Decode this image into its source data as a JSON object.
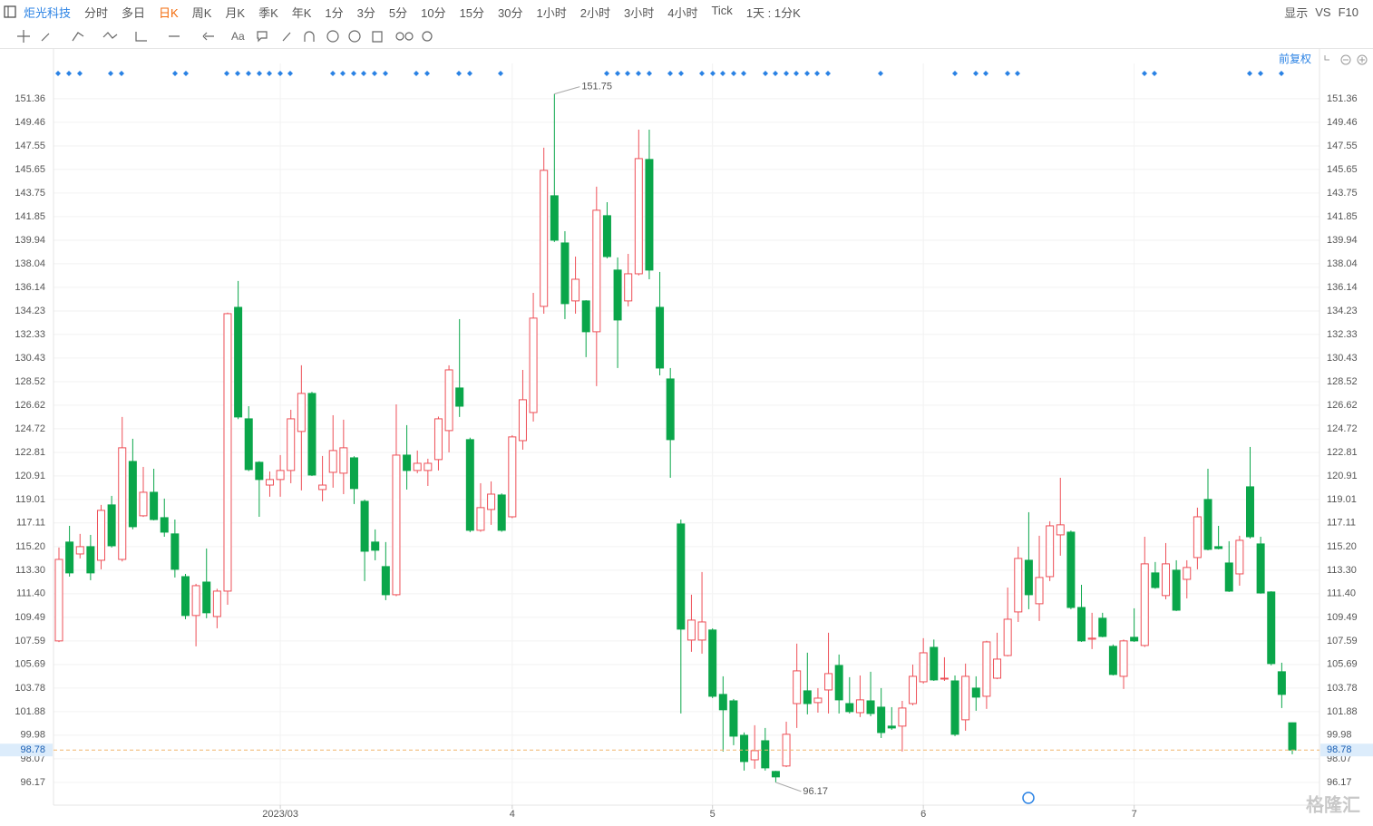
{
  "toolbar": {
    "stock": "炬光科技",
    "periods": [
      "分时",
      "多日",
      "日K",
      "周K",
      "月K",
      "季K",
      "年K",
      "1分",
      "3分",
      "5分",
      "10分",
      "15分",
      "30分",
      "1小时",
      "2小时",
      "3小时",
      "4小时",
      "Tick",
      "1天 : 1分K"
    ],
    "active_period_index": 2,
    "right": [
      "显示",
      "VS",
      "F10"
    ]
  },
  "adjust_label": "前复权",
  "watermark": "格隆汇",
  "chart_data": {
    "type": "candlestick",
    "categories": [
      null,
      null,
      null,
      null,
      null,
      null,
      null,
      null,
      null,
      null,
      null,
      null,
      null,
      null,
      null,
      null,
      null,
      null,
      null,
      null,
      null,
      "2023/03",
      null,
      null,
      null,
      null,
      null,
      null,
      null,
      null,
      null,
      null,
      null,
      null,
      null,
      null,
      null,
      null,
      null,
      null,
      null,
      null,
      null,
      "4",
      null,
      null,
      null,
      null,
      null,
      null,
      null,
      null,
      null,
      null,
      null,
      null,
      null,
      null,
      null,
      null,
      null,
      null,
      "5",
      null,
      null,
      null,
      null,
      null,
      null,
      null,
      null,
      null,
      null,
      null,
      null,
      null,
      null,
      null,
      null,
      null,
      null,
      null,
      "6",
      null,
      null,
      null,
      null,
      null,
      null,
      null,
      null,
      null,
      null,
      null,
      null,
      null,
      null,
      null,
      null,
      null,
      null,
      null,
      "7",
      null,
      null,
      null,
      null,
      null,
      null,
      null,
      null,
      null,
      null,
      null,
      null,
      null,
      null,
      null
    ],
    "open": [
      107.59,
      115.57,
      114.61,
      115.2,
      114.1,
      118.57,
      114.17,
      122.08,
      117.69,
      119.59,
      117.54,
      116.23,
      112.78,
      109.64,
      112.34,
      109.56,
      111.61,
      134.52,
      125.52,
      122.01,
      120.17,
      120.62,
      121.35,
      124.5,
      127.57,
      119.81,
      121.2,
      121.13,
      122.37,
      118.86,
      115.57,
      113.59,
      111.32,
      122.59,
      121.35,
      121.35,
      122.23,
      124.57,
      128.01,
      123.84,
      116.52,
      118.2,
      119.37,
      117.61,
      123.76,
      126.03,
      134.6,
      143.53,
      139.72,
      135.04,
      135.04,
      132.55,
      141.92,
      137.53,
      135.04,
      137.23,
      146.46,
      134.52,
      128.74,
      117.03,
      107.66,
      107.66,
      108.47,
      103.27,
      102.75,
      99.97,
      97.99,
      99.53,
      97.05,
      97.49,
      102.53,
      103.56,
      102.61,
      103.63,
      105.61,
      102.53,
      101.8,
      102.75,
      102.24,
      100.71,
      100.71,
      102.53,
      104.29,
      107.07,
      104.51,
      104.36,
      101.22,
      103.78,
      103.12,
      104.58,
      106.41,
      109.93,
      114.1,
      110.59,
      112.78,
      116.15,
      116.37,
      110.29,
      107.73,
      109.42,
      107.15,
      104.73,
      107.88,
      107.22,
      113.08,
      111.25,
      113.3,
      112.56,
      114.32,
      119.01,
      115.2,
      113.88,
      113.0,
      120.03,
      115.42,
      111.54,
      105.1,
      100.98
    ],
    "high": [
      115.13,
      116.88,
      116.23,
      116.15,
      118.57,
      119.3,
      125.67,
      123.91,
      121.64,
      121.49,
      119.08,
      117.39,
      113.0,
      112.2,
      115.05,
      111.8,
      134.1,
      136.65,
      126.54,
      122.1,
      121.27,
      122.59,
      126.25,
      129.84,
      127.7,
      122.52,
      125.81,
      125.45,
      122.5,
      119.0,
      116.59,
      115.57,
      126.69,
      125.01,
      122.96,
      122.3,
      125.7,
      129.84,
      133.57,
      124.0,
      120.32,
      120.47,
      119.5,
      124.2,
      129.47,
      135.69,
      147.41,
      151.75,
      140.67,
      138.62,
      135.1,
      144.26,
      143.01,
      138.55,
      138.84,
      148.87,
      148.87,
      137.38,
      129.62,
      117.39,
      111.32,
      113.15,
      108.6,
      104.73,
      102.9,
      100.2,
      100.78,
      100.56,
      97.1,
      101.07,
      107.37,
      106.64,
      103.78,
      108.25,
      106.49,
      104.66,
      104.8,
      105.1,
      103.78,
      102.24,
      102.75,
      105.68,
      107.81,
      107.7,
      106.27,
      104.8,
      105.76,
      104.73,
      107.6,
      108.25,
      111.9,
      115.2,
      117.98,
      116.08,
      117.25,
      120.76,
      116.5,
      112.12,
      109.86,
      109.86,
      107.3,
      107.7,
      110.22,
      116.0,
      113.96,
      115.49,
      114.1,
      114.1,
      118.35,
      121.49,
      116.88,
      115.64,
      116.08,
      123.25,
      116.0,
      111.6,
      105.83,
      101.0
    ],
    "low": [
      107.5,
      112.78,
      114.25,
      112.49,
      113.37,
      115.13,
      114.0,
      116.6,
      117.6,
      117.32,
      116.0,
      112.71,
      109.34,
      107.15,
      109.42,
      108.61,
      110.51,
      125.5,
      121.3,
      117.61,
      119.23,
      119.23,
      120.32,
      119.74,
      120.9,
      118.86,
      119.96,
      119.44,
      118.64,
      112.42,
      114.1,
      110.88,
      111.2,
      119.81,
      121.13,
      120.1,
      121.35,
      122.81,
      125.67,
      116.37,
      116.4,
      116.96,
      116.4,
      117.5,
      123.03,
      125.3,
      134.01,
      139.8,
      133.57,
      134.01,
      130.5,
      128.16,
      138.47,
      129.62,
      134.6,
      137.1,
      136.79,
      129.03,
      120.76,
      101.73,
      106.71,
      106.56,
      102.97,
      98.66,
      99.17,
      97.12,
      97.27,
      97.12,
      96.17,
      97.4,
      100.56,
      101.66,
      101.8,
      101.73,
      101.73,
      101.73,
      101.44,
      101.51,
      99.75,
      100.41,
      98.66,
      102.39,
      104.15,
      104.36,
      104.36,
      99.9,
      100.34,
      101.95,
      102.1,
      104.5,
      106.34,
      109.12,
      110.15,
      109.2,
      112.42,
      114.47,
      110.15,
      107.51,
      106.93,
      107.88,
      104.8,
      103.71,
      107.51,
      107.1,
      111.8,
      110.95,
      110.0,
      111.02,
      113.37,
      114.9,
      114.98,
      111.54,
      112.05,
      115.86,
      111.4,
      105.61,
      102.17,
      98.44
    ],
    "close": [
      114.17,
      113.08,
      115.2,
      113.08,
      118.13,
      115.27,
      123.18,
      116.81,
      119.59,
      117.39,
      116.37,
      113.37,
      109.64,
      112.05,
      109.86,
      111.61,
      134.01,
      125.67,
      121.42,
      120.62,
      120.62,
      121.35,
      125.52,
      127.57,
      120.98,
      120.17,
      122.96,
      123.18,
      119.89,
      114.83,
      114.91,
      111.32,
      122.59,
      121.35,
      121.93,
      121.93,
      125.52,
      129.47,
      126.54,
      116.52,
      118.35,
      119.44,
      116.52,
      124.06,
      127.06,
      133.65,
      145.58,
      139.94,
      134.82,
      136.79,
      132.55,
      142.36,
      138.62,
      133.5,
      137.23,
      146.53,
      137.53,
      129.62,
      123.84,
      108.54,
      109.27,
      109.12,
      103.12,
      102.03,
      99.9,
      97.85,
      98.73,
      97.34,
      96.61,
      100.05,
      105.17,
      102.53,
      102.97,
      104.95,
      102.83,
      101.88,
      102.83,
      101.73,
      100.19,
      100.56,
      102.17,
      104.73,
      106.63,
      104.44,
      104.58,
      100.05,
      104.73,
      103.05,
      107.51,
      106.12,
      109.34,
      114.25,
      111.32,
      112.71,
      116.88,
      116.96,
      110.29,
      107.59,
      107.81,
      107.95,
      104.88,
      107.59,
      107.59,
      113.81,
      111.9,
      113.81,
      110.07,
      113.52,
      117.61,
      114.98,
      115.05,
      111.61,
      115.71,
      116.0,
      111.46,
      105.76,
      103.27,
      98.78
    ],
    "up_color": "#ee4f57",
    "down_color": "#0aa64a",
    "ylim": [
      94.33,
      154.21
    ],
    "yticks": [
      96.17,
      98.07,
      99.98,
      101.88,
      103.78,
      105.69,
      107.59,
      109.49,
      {
        "value": 111.4,
        "label": "111.40"
      },
      {
        "value": 113.3,
        "label": "113.30"
      },
      {
        "value": 115.2,
        "label": "115.20"
      },
      117.11,
      119.01,
      120.91,
      122.81,
      124.72,
      126.62,
      128.52,
      130.43,
      132.33,
      134.23,
      136.14,
      138.04,
      139.94,
      141.85,
      143.75,
      145.65,
      147.55,
      149.46,
      151.36
    ],
    "grid": true
  }
}
